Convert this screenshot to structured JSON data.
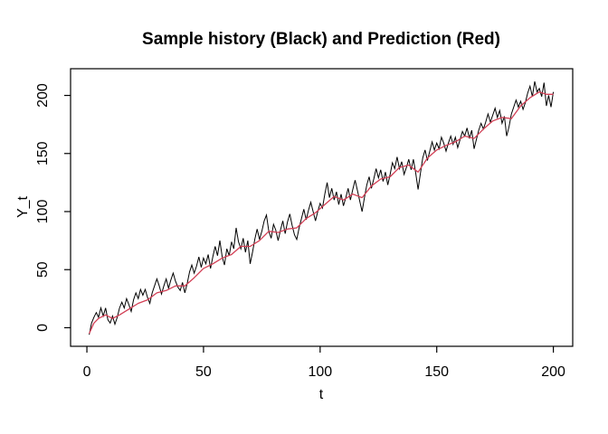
{
  "window": {
    "background": "#ffffff",
    "foreground": "#000000"
  },
  "chart_data": {
    "type": "line",
    "title": "Sample history (Black) and Prediction (Red)",
    "xlabel": "t",
    "ylabel": "Y_t",
    "xlim": [
      -7,
      208.3
    ],
    "ylim": [
      -16,
      223
    ],
    "x_ticks": [
      0,
      50,
      100,
      150,
      200
    ],
    "y_ticks": [
      0,
      50,
      100,
      150,
      200
    ],
    "grid": false,
    "legend_position": "none",
    "colors": {
      "history": "#000000",
      "prediction": "#d23f55",
      "box": "#000000"
    },
    "series": [
      {
        "name": "Sample history",
        "color": "#000000",
        "x_start": 1,
        "x_step": 1,
        "values": [
          -6,
          4,
          9,
          13,
          9,
          17,
          10,
          17,
          7,
          4,
          10,
          3,
          9,
          17,
          22,
          17,
          25,
          20,
          14,
          24,
          30,
          25,
          33,
          28,
          33,
          26,
          21,
          30,
          36,
          42,
          36,
          29,
          36,
          42,
          34,
          41,
          47,
          40,
          35,
          32,
          39,
          30,
          38,
          48,
          54,
          47,
          53,
          61,
          52,
          60,
          55,
          63,
          51,
          61,
          70,
          62,
          75,
          61,
          54,
          68,
          62,
          74,
          68,
          86,
          74,
          68,
          77,
          65,
          75,
          55,
          65,
          76,
          85,
          76,
          83,
          92,
          97,
          83,
          77,
          89,
          84,
          75,
          84,
          92,
          81,
          91,
          98,
          88,
          80,
          76,
          86,
          94,
          102,
          93,
          101,
          108,
          100,
          92,
          100,
          107,
          103,
          115,
          125,
          112,
          120,
          110,
          117,
          106,
          115,
          105,
          112,
          120,
          110,
          119,
          127,
          118,
          109,
          100,
          112,
          123,
          130,
          120,
          128,
          137,
          129,
          136,
          126,
          134,
          123,
          132,
          142,
          137,
          147,
          137,
          143,
          132,
          138,
          145,
          136,
          145,
          133,
          119,
          133,
          146,
          153,
          144,
          152,
          160,
          153,
          159,
          154,
          164,
          159,
          152,
          159,
          165,
          158,
          164,
          155,
          162,
          169,
          165,
          172,
          163,
          170,
          154,
          162,
          170,
          176,
          171,
          177,
          184,
          177,
          183,
          189,
          181,
          187,
          176,
          182,
          165,
          173,
          184,
          190,
          196,
          190,
          195,
          188,
          194,
          202,
          208,
          199,
          212,
          203,
          206,
          199,
          211,
          191,
          200,
          190,
          203
        ]
      },
      {
        "name": "Prediction",
        "color": "#d23f55",
        "points": [
          [
            1,
            -5
          ],
          [
            3,
            4
          ],
          [
            5,
            8
          ],
          [
            8,
            11
          ],
          [
            11,
            8
          ],
          [
            14,
            11
          ],
          [
            18,
            16
          ],
          [
            22,
            21
          ],
          [
            26,
            24
          ],
          [
            30,
            30
          ],
          [
            34,
            32
          ],
          [
            38,
            36
          ],
          [
            42,
            36
          ],
          [
            46,
            43
          ],
          [
            50,
            51
          ],
          [
            54,
            55
          ],
          [
            58,
            60
          ],
          [
            62,
            63
          ],
          [
            66,
            70
          ],
          [
            70,
            70
          ],
          [
            74,
            75
          ],
          [
            78,
            83
          ],
          [
            82,
            82
          ],
          [
            86,
            85
          ],
          [
            90,
            86
          ],
          [
            94,
            94
          ],
          [
            98,
            99
          ],
          [
            102,
            106
          ],
          [
            106,
            113
          ],
          [
            110,
            110
          ],
          [
            114,
            115
          ],
          [
            118,
            112
          ],
          [
            122,
            122
          ],
          [
            126,
            128
          ],
          [
            130,
            130
          ],
          [
            134,
            138
          ],
          [
            138,
            140
          ],
          [
            142,
            134
          ],
          [
            146,
            146
          ],
          [
            150,
            153
          ],
          [
            154,
            157
          ],
          [
            158,
            160
          ],
          [
            162,
            165
          ],
          [
            166,
            163
          ],
          [
            170,
            171
          ],
          [
            174,
            178
          ],
          [
            178,
            181
          ],
          [
            182,
            180
          ],
          [
            186,
            191
          ],
          [
            190,
            198
          ],
          [
            194,
            203
          ],
          [
            197,
            201
          ],
          [
            200,
            201
          ]
        ]
      }
    ]
  }
}
